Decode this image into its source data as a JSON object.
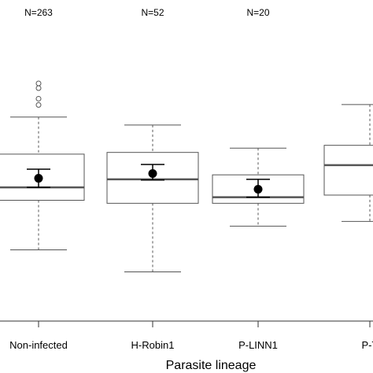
{
  "chart_data": {
    "type": "box",
    "xlabel": "Parasite lineage",
    "ylabel": "",
    "ylim": [
      0,
      10
    ],
    "groups": [
      {
        "category": "Non-infected",
        "n_label": "N=263",
        "box": {
          "whisker_low": 2.28,
          "q1": 4.58,
          "median": 5.18,
          "q3": 6.72,
          "whisker_high": 8.44
        },
        "outliers": [
          9.0,
          9.29,
          9.78,
          10.0
        ],
        "mean": 5.6,
        "error": [
          5.18,
          6.02
        ]
      },
      {
        "category": "H-Robin1",
        "n_label": "N=52",
        "box": {
          "whisker_low": 1.26,
          "q1": 4.44,
          "median": 5.55,
          "q3": 6.8,
          "whisker_high": 8.07
        },
        "outliers": [],
        "mean": 5.82,
        "error": [
          5.52,
          6.24
        ]
      },
      {
        "category": "P-LINN1",
        "n_label": "N=20",
        "box": {
          "whisker_low": 3.38,
          "q1": 4.44,
          "median": 4.72,
          "q3": 5.76,
          "whisker_high": 7.0
        },
        "outliers": [],
        "mean": 5.09,
        "error": [
          4.72,
          5.55
        ]
      },
      {
        "category": "P-T",
        "n_label": "",
        "box": {
          "whisker_low": 3.6,
          "q1": 4.82,
          "median": 6.21,
          "q3": 7.13,
          "whisker_high": 9.02
        },
        "outliers": [],
        "mean": null,
        "error": null
      }
    ]
  }
}
